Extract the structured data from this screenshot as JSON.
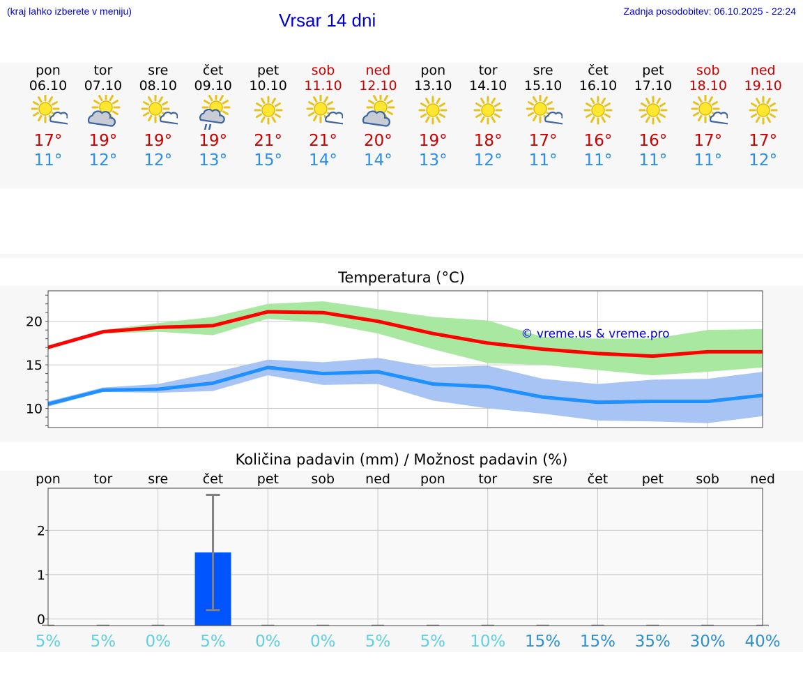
{
  "header": {
    "hint": "(kraj lahko izberete v meniju)",
    "title": "Vrsar 14 dni",
    "updated": "Zadnja posodobitev: 06.10.2025 - 22:24"
  },
  "days": [
    {
      "name": "pon",
      "date": "06.10",
      "icon": "sun-cloud-icon",
      "max": "17°",
      "min": "11°",
      "weekend": false
    },
    {
      "name": "tor",
      "date": "07.10",
      "icon": "cloudy-sun-icon",
      "max": "19°",
      "min": "12°",
      "weekend": false
    },
    {
      "name": "sre",
      "date": "08.10",
      "icon": "sun-cloud-icon",
      "max": "19°",
      "min": "12°",
      "weekend": false
    },
    {
      "name": "čet",
      "date": "09.10",
      "icon": "rain-cloud-sun-icon",
      "max": "19°",
      "min": "13°",
      "weekend": false
    },
    {
      "name": "pet",
      "date": "10.10",
      "icon": "sun-icon",
      "max": "21°",
      "min": "15°",
      "weekend": false
    },
    {
      "name": "sob",
      "date": "11.10",
      "icon": "sun-cloud-icon",
      "max": "21°",
      "min": "14°",
      "weekend": true
    },
    {
      "name": "ned",
      "date": "12.10",
      "icon": "cloudy-sun-icon",
      "max": "20°",
      "min": "14°",
      "weekend": true
    },
    {
      "name": "pon",
      "date": "13.10",
      "icon": "sun-icon",
      "max": "19°",
      "min": "13°",
      "weekend": false
    },
    {
      "name": "tor",
      "date": "14.10",
      "icon": "sun-icon",
      "max": "18°",
      "min": "12°",
      "weekend": false
    },
    {
      "name": "sre",
      "date": "15.10",
      "icon": "sun-cloud-icon",
      "max": "17°",
      "min": "11°",
      "weekend": false
    },
    {
      "name": "čet",
      "date": "16.10",
      "icon": "sun-icon",
      "max": "16°",
      "min": "11°",
      "weekend": false
    },
    {
      "name": "pet",
      "date": "17.10",
      "icon": "sun-icon",
      "max": "16°",
      "min": "11°",
      "weekend": false
    },
    {
      "name": "sob",
      "date": "18.10",
      "icon": "sun-cloud-icon",
      "max": "17°",
      "min": "11°",
      "weekend": true
    },
    {
      "name": "ned",
      "date": "19.10",
      "icon": "sun-icon",
      "max": "17°",
      "min": "12°",
      "weekend": true
    }
  ],
  "colors": {
    "max_temp": "#cc0000",
    "min_temp": "#2a8ef0",
    "max_line": "#ff0000",
    "max_band": "#a8e8a0",
    "min_line": "#1e90ff",
    "min_band": "#a8c4f4",
    "bar": "#0055ff",
    "errbar": "#808080",
    "prob_low": "#5ed0e0",
    "prob_high": "#2a90d0"
  },
  "chart_data": [
    {
      "type": "line",
      "title": "Temperatura (°C)",
      "watermark": "© vreme.us & vreme.pro",
      "ylim": [
        7.8,
        23.5
      ],
      "yticks": [
        10,
        15,
        20
      ],
      "grid": true,
      "series": [
        {
          "values": [
            17.0,
            18.8,
            19.3,
            19.5,
            21.1,
            21.0,
            20.0,
            18.6,
            17.5,
            16.8,
            16.3,
            16.0,
            16.5,
            16.5
          ],
          "band_low": [
            16.8,
            18.6,
            18.8,
            18.4,
            20.3,
            19.8,
            18.6,
            16.8,
            15.2,
            15.0,
            14.4,
            13.8,
            14.2,
            14.7
          ],
          "band_high": [
            17.2,
            19.0,
            19.8,
            20.5,
            22.0,
            22.3,
            21.4,
            20.5,
            20.1,
            18.2,
            18.0,
            18.0,
            19.0,
            19.1
          ]
        },
        {
          "values": [
            10.5,
            12.1,
            12.2,
            12.9,
            14.7,
            14.0,
            14.2,
            12.8,
            12.5,
            11.3,
            10.7,
            10.8,
            10.8,
            11.5
          ],
          "band_low": [
            10.2,
            11.9,
            11.8,
            12.0,
            13.8,
            12.7,
            12.8,
            10.9,
            10.0,
            9.4,
            8.6,
            8.5,
            8.3,
            9.1
          ],
          "band_high": [
            10.8,
            12.4,
            12.8,
            14.1,
            15.6,
            15.3,
            15.8,
            14.7,
            14.9,
            13.4,
            12.8,
            13.3,
            13.4,
            14.2
          ]
        }
      ]
    },
    {
      "type": "bar",
      "title": "Količina padavin (mm) / Možnost padavin (%)",
      "categories": [
        "pon",
        "tor",
        "sre",
        "čet",
        "pet",
        "sob",
        "ned",
        "pon",
        "tor",
        "sre",
        "čet",
        "pet",
        "sob",
        "ned"
      ],
      "values": [
        0,
        0,
        0,
        1.5,
        0,
        0,
        0,
        0,
        0,
        0,
        0,
        0,
        0,
        0
      ],
      "err_low": [
        0,
        0,
        0,
        0.2,
        0,
        0,
        0,
        0,
        0,
        0,
        0,
        0,
        0,
        0
      ],
      "err_high": [
        0,
        0,
        0,
        2.8,
        0,
        0,
        0,
        0,
        0,
        0,
        0,
        0,
        0,
        0
      ],
      "probability_labels": [
        "5%",
        "5%",
        "0%",
        "5%",
        "0%",
        "0%",
        "5%",
        "5%",
        "10%",
        "15%",
        "15%",
        "35%",
        "30%",
        "40%"
      ],
      "ylim": [
        -0.15,
        2.95
      ],
      "yticks": [
        0,
        1,
        2
      ],
      "grid": true
    }
  ]
}
